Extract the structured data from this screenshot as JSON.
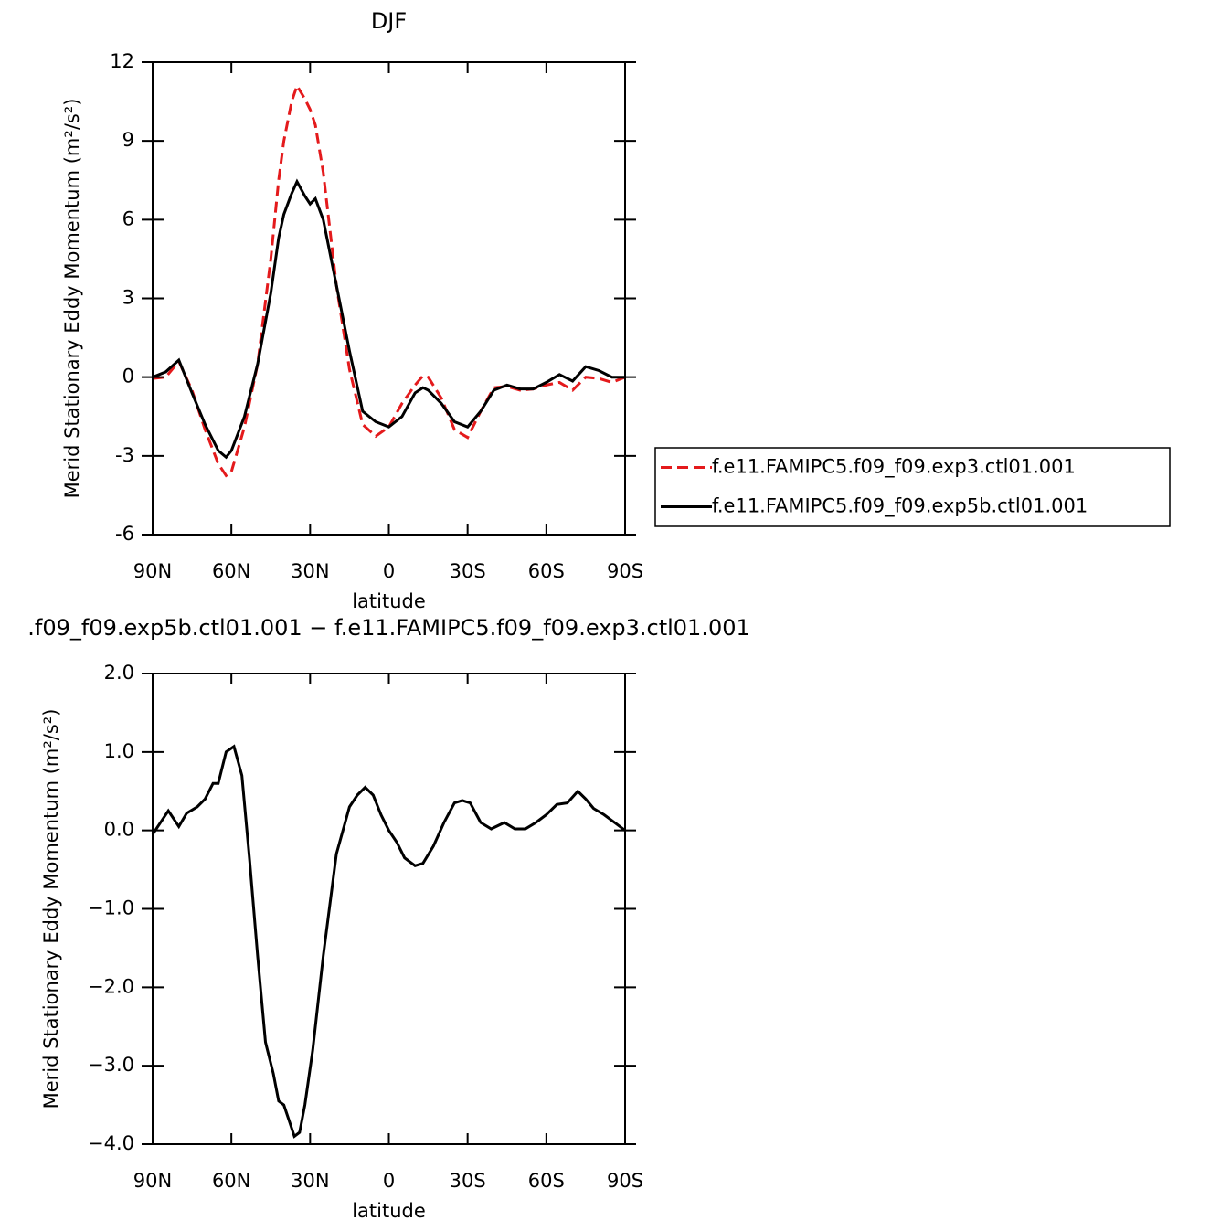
{
  "chart_data": [
    {
      "type": "line",
      "title": "DJF",
      "xlabel": "latitude",
      "ylabel": "Merid Stationary Eddy Momentum (m²/s²)",
      "x": [
        90,
        85,
        80,
        75,
        70,
        65,
        62,
        60,
        55,
        50,
        45,
        42,
        40,
        37,
        35,
        32,
        30,
        28,
        25,
        20,
        15,
        10,
        5,
        0,
        -5,
        -10,
        -13,
        -15,
        -20,
        -25,
        -30,
        -35,
        -40,
        -45,
        -50,
        -55,
        -60,
        -65,
        -70,
        -75,
        -80,
        -85,
        -90
      ],
      "series": [
        {
          "name": "f.e11.FAMIPC5.f09_f09.exp3.ctl01.001",
          "color": "#e41a1c",
          "dash": true,
          "values": [
            -0.05,
            0,
            0.6,
            -0.5,
            -2.0,
            -3.3,
            -3.75,
            -3.6,
            -1.9,
            0.5,
            4.5,
            7.5,
            9.0,
            10.5,
            11.1,
            10.6,
            10.2,
            9.6,
            7.8,
            3.5,
            0.3,
            -1.8,
            -2.25,
            -1.9,
            -1.0,
            -0.3,
            0.05,
            0,
            -0.8,
            -2.0,
            -2.3,
            -1.3,
            -0.4,
            -0.35,
            -0.5,
            -0.45,
            -0.3,
            -0.2,
            -0.5,
            0,
            -0.05,
            -0.2,
            0
          ]
        },
        {
          "name": "f.e11.FAMIPC5.f09_f09.exp5b.ctl01.001",
          "color": "#000000",
          "dash": false,
          "values": [
            0,
            0.2,
            0.65,
            -0.6,
            -1.8,
            -2.8,
            -3.05,
            -2.8,
            -1.5,
            0.5,
            3.2,
            5.3,
            6.2,
            7.0,
            7.45,
            6.9,
            6.6,
            6.8,
            6.0,
            3.5,
            1.0,
            -1.3,
            -1.7,
            -1.9,
            -1.5,
            -0.6,
            -0.4,
            -0.5,
            -1.0,
            -1.7,
            -1.9,
            -1.3,
            -0.5,
            -0.3,
            -0.45,
            -0.45,
            -0.2,
            0.1,
            -0.15,
            0.4,
            0.25,
            0,
            0
          ]
        }
      ],
      "xlim": [
        90,
        -90
      ],
      "xticks": [
        {
          "value": 90,
          "label": "90N"
        },
        {
          "value": 60,
          "label": "60N"
        },
        {
          "value": 30,
          "label": "30N"
        },
        0,
        {
          "value": -30,
          "label": "30S"
        },
        {
          "value": -60,
          "label": "60S"
        },
        {
          "value": -90,
          "label": "90S"
        }
      ],
      "ylim": [
        -6,
        12
      ],
      "yticks": [
        -6,
        -3,
        0,
        3,
        6,
        9,
        12
      ],
      "legend": "right"
    },
    {
      "type": "line",
      "title": ".f09_f09.exp5b.ctl01.001 − f.e11.FAMIPC5.f09_f09.exp3.ctl01.001",
      "xlabel": "latitude",
      "ylabel": "Merid Stationary Eddy Momentum (m²/s²)",
      "x": [
        90,
        87,
        84,
        80,
        77,
        73,
        70,
        67,
        65,
        62,
        59,
        56,
        53,
        50,
        47,
        44,
        42,
        40,
        38,
        36,
        34,
        32,
        29,
        25,
        20,
        15,
        12,
        9,
        6,
        3,
        0,
        -3,
        -6,
        -10,
        -13,
        -17,
        -21,
        -25,
        -28,
        -31,
        -35,
        -39,
        -44,
        -48,
        -52,
        -56,
        -60,
        -64,
        -68,
        -72,
        -75,
        -78,
        -82,
        -86,
        -90
      ],
      "series": [
        {
          "color": "#000000",
          "dash": false,
          "values": [
            -0.05,
            0.1,
            0.25,
            0.05,
            0.22,
            0.3,
            0.4,
            0.6,
            0.6,
            1.0,
            1.07,
            0.7,
            -0.4,
            -1.6,
            -2.7,
            -3.1,
            -3.45,
            -3.5,
            -3.7,
            -3.9,
            -3.85,
            -3.5,
            -2.8,
            -1.6,
            -0.3,
            0.3,
            0.45,
            0.55,
            0.45,
            0.2,
            0,
            -0.15,
            -0.35,
            -0.45,
            -0.42,
            -0.2,
            0.1,
            0.35,
            0.38,
            0.35,
            0.1,
            0.02,
            0.1,
            0.02,
            0.02,
            0.1,
            0.2,
            0.33,
            0.35,
            0.5,
            0.4,
            0.28,
            0.2,
            0.1,
            0
          ]
        }
      ],
      "xlim": [
        90,
        -90
      ],
      "xticks": [
        {
          "value": 90,
          "label": "90N"
        },
        {
          "value": 60,
          "label": "60N"
        },
        {
          "value": 30,
          "label": "30N"
        },
        0,
        {
          "value": -30,
          "label": "30S"
        },
        {
          "value": -60,
          "label": "60S"
        },
        {
          "value": -90,
          "label": "90S"
        }
      ],
      "ylim": [
        -4,
        2
      ],
      "yticks": [
        {
          "value": -4,
          "label": "−4.0"
        },
        {
          "value": -3,
          "label": "−3.0"
        },
        {
          "value": -2,
          "label": "−2.0"
        },
        {
          "value": -1,
          "label": "−1.0"
        },
        {
          "value": 0,
          "label": "0.0"
        },
        {
          "value": 1,
          "label": "1.0"
        },
        {
          "value": 2,
          "label": "2.0"
        }
      ]
    }
  ]
}
